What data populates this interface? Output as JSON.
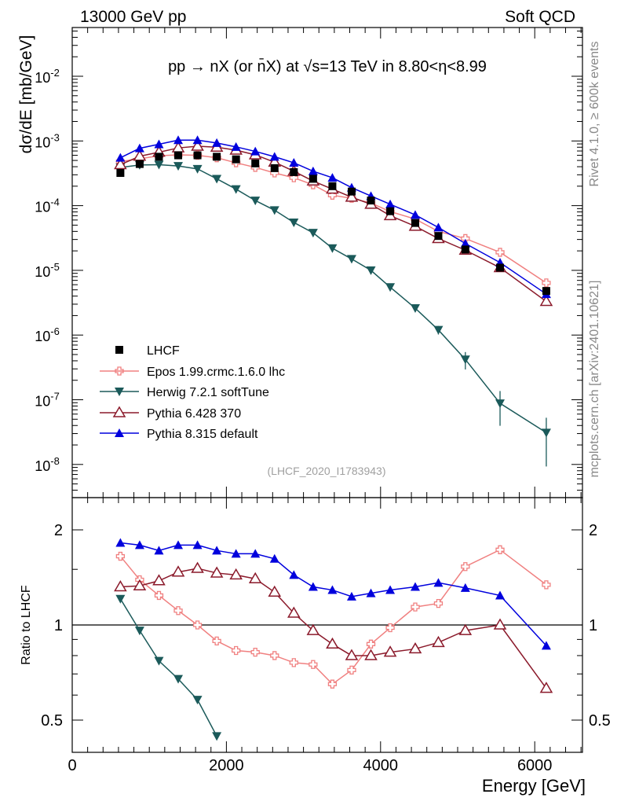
{
  "header": {
    "energy_label": "13000 GeV pp",
    "category": "Soft QCD",
    "rivet_label": "Rivet 4.1.0, ≥ 600k events",
    "source_label": "mcplots.cern.ch [arXiv:2401.10621]",
    "analysis_id": "(LHCF_2020_I1783943)"
  },
  "chart_data": [
    {
      "type": "scatter",
      "title": "pp → nX (or n̄X) at √s=13 TeV in 8.80<η<8.99",
      "xlabel": "Energy [GeV]",
      "ylabel": "dσ/dE [mb/GeV]",
      "yscale": "log",
      "xlim": [
        0,
        6600
      ],
      "ylim": [
        3e-09,
        0.08
      ],
      "y_tick_labels": [
        "10^-8",
        "10^-7",
        "10^-6",
        "10^-5",
        "10^-4",
        "10^-3",
        "10^-2"
      ],
      "x": [
        625,
        875,
        1125,
        1375,
        1625,
        1875,
        2125,
        2375,
        2625,
        2875,
        3125,
        3375,
        3625,
        3875,
        4125,
        4450,
        4750,
        5100,
        5550,
        6150
      ],
      "series": [
        {
          "name": "LHCF",
          "color": "#000000",
          "marker": "square",
          "values": [
            0.00032,
            0.00044,
            0.00057,
            0.0006,
            0.0006,
            0.00057,
            0.00052,
            0.00045,
            0.00038,
            0.00033,
            0.00026,
            0.0002,
            0.000165,
            0.00012,
            8.2e-05,
            5.4e-05,
            3.4e-05,
            2.1e-05,
            1.1e-05,
            4.8e-06
          ]
        },
        {
          "name": "Epos 1.99.crmc.1.6.0 lhc",
          "color": "#f08080",
          "marker": "cross",
          "values": [
            0.00048,
            0.00053,
            0.00059,
            0.00061,
            0.0006,
            0.00055,
            0.00046,
            0.00039,
            0.00032,
            0.00027,
            0.00021,
            0.000145,
            0.00013,
            0.00011,
            8.1e-05,
            6.2e-05,
            4e-05,
            3.1e-05,
            1.9e-05,
            6.4e-06
          ]
        },
        {
          "name": "Herwig 7.2.1 softTune",
          "color": "#1b5a5a",
          "marker": "triangle-down",
          "values": [
            0.00039,
            0.000425,
            0.00043,
            0.00041,
            0.00037,
            0.00026,
            0.00018,
            0.00012,
            8.5e-05,
            5.5e-05,
            3.8e-05,
            2.2e-05,
            1.5e-05,
            1e-05,
            5.5e-06,
            2.6e-06,
            1.2e-06,
            4.2e-07,
            8.8e-08,
            3.1e-08
          ]
        },
        {
          "name": "Pythia 6.428 370",
          "color": "#8b1a2b",
          "marker": "triangle-open",
          "values": [
            0.00043,
            0.00058,
            0.00067,
            0.00078,
            0.00083,
            0.0008,
            0.00072,
            0.00061,
            0.00047,
            0.00034,
            0.00024,
            0.00018,
            0.000135,
            0.000105,
            7e-05,
            4.8e-05,
            3.1e-05,
            2.05e-05,
            1.1e-05,
            3.3e-06
          ]
        },
        {
          "name": "Pythia 8.315 default",
          "color": "#0000dd",
          "marker": "triangle-up",
          "values": [
            0.00055,
            0.00077,
            0.00089,
            0.00103,
            0.00103,
            0.00093,
            0.00081,
            0.00069,
            0.00057,
            0.00046,
            0.00034,
            0.00027,
            0.00019,
            0.000141,
            0.000105,
            7.2e-05,
            4.6e-05,
            2.6e-05,
            1.32e-05,
            4.3e-06
          ]
        }
      ]
    },
    {
      "type": "scatter",
      "xlabel": "Energy [GeV]",
      "ylabel": "Ratio to LHCF",
      "yscale": "log",
      "xlim": [
        0,
        6600
      ],
      "ylim": [
        0.4,
        2.3
      ],
      "x_tick_labels": [
        "0",
        "2000",
        "4000",
        "6000"
      ],
      "y_tick_labels": [
        "0.5",
        "1",
        "2"
      ],
      "reference_line": 1,
      "x": [
        625,
        875,
        1125,
        1375,
        1625,
        1875,
        2125,
        2375,
        2625,
        2875,
        3125,
        3375,
        3625,
        3875,
        4125,
        4450,
        4750,
        5100,
        5550,
        6150
      ],
      "series": [
        {
          "name": "Epos 1.99.crmc.1.6.0 lhc",
          "color": "#f08080",
          "marker": "cross",
          "values": [
            1.65,
            1.39,
            1.24,
            1.11,
            1.0,
            0.89,
            0.83,
            0.82,
            0.8,
            0.76,
            0.75,
            0.65,
            0.72,
            0.87,
            0.98,
            1.14,
            1.17,
            1.53,
            1.73,
            1.34
          ]
        },
        {
          "name": "Herwig 7.2.1 softTune",
          "color": "#1b5a5a",
          "marker": "triangle-down",
          "values": [
            1.21,
            0.96,
            0.77,
            0.675,
            0.58,
            0.445
          ]
        },
        {
          "name": "Pythia 6.428 370",
          "color": "#8b1a2b",
          "marker": "triangle-open",
          "values": [
            1.32,
            1.33,
            1.38,
            1.47,
            1.51,
            1.46,
            1.44,
            1.4,
            1.27,
            1.09,
            0.96,
            0.87,
            0.8,
            0.8,
            0.82,
            0.84,
            0.88,
            0.96,
            1.0,
            0.63
          ]
        },
        {
          "name": "Pythia 8.315 default",
          "color": "#0000dd",
          "marker": "triangle-up",
          "values": [
            1.82,
            1.79,
            1.72,
            1.79,
            1.79,
            1.72,
            1.68,
            1.68,
            1.62,
            1.44,
            1.32,
            1.29,
            1.23,
            1.26,
            1.29,
            1.32,
            1.36,
            1.31,
            1.24,
            0.86
          ]
        }
      ]
    }
  ],
  "legend": [
    "LHCF",
    "Epos 1.99.crmc.1.6.0 lhc",
    "Herwig 7.2.1 softTune",
    "Pythia 6.428 370",
    "Pythia 8.315 default"
  ]
}
